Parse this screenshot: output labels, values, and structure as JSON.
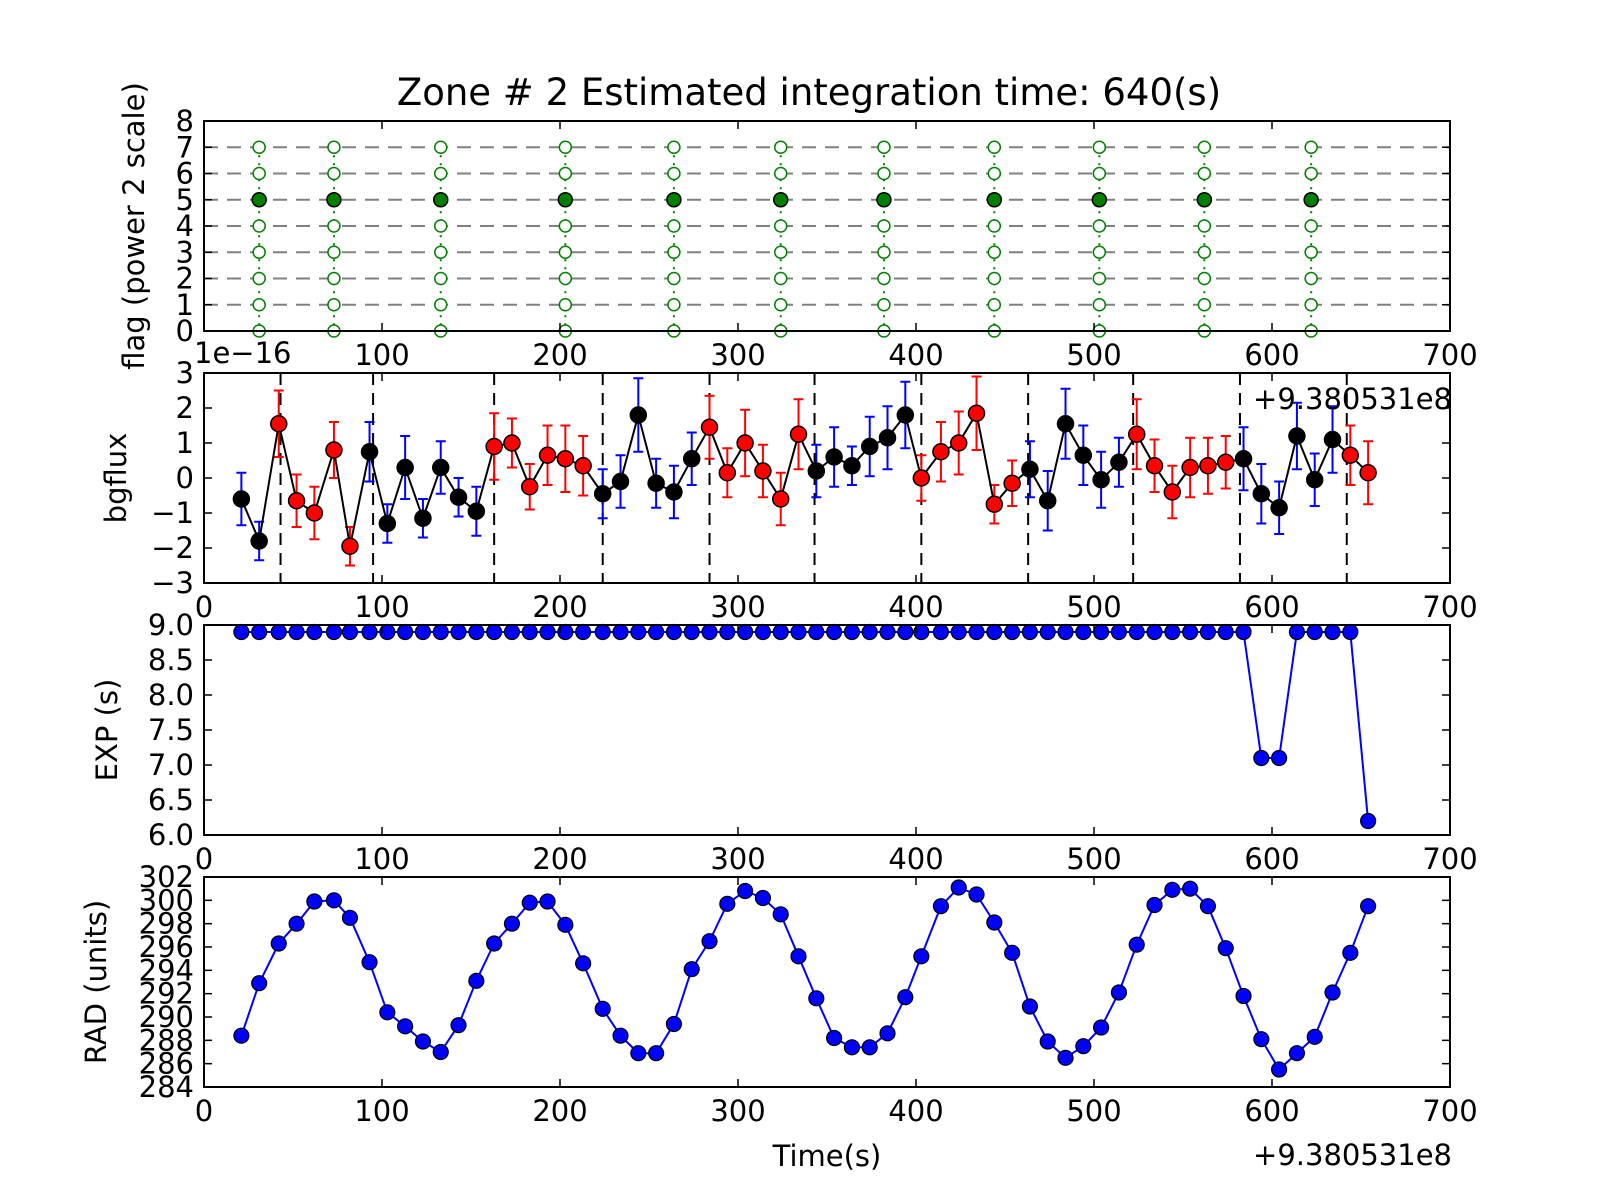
{
  "chart_data": [
    {
      "type": "scatter",
      "title": "Zone # 2 Estimated integration time: 640(s)",
      "ylabel": "flag (power 2 scale)",
      "xlim": [
        0,
        700
      ],
      "ylim": [
        0,
        8
      ],
      "xticks": [
        "100",
        "200",
        "300",
        "400",
        "500",
        "600",
        "700"
      ],
      "yticks": [
        "0",
        "1",
        "2",
        "3",
        "4",
        "5",
        "6",
        "7",
        "8"
      ],
      "grid_levels": [
        1,
        2,
        3,
        4,
        5,
        6,
        7
      ],
      "x": [
        31,
        73,
        133,
        203,
        264,
        324,
        382,
        444,
        503,
        562,
        622
      ],
      "set_flag": 5,
      "unset_flags": [
        0,
        1,
        2,
        3,
        4,
        6,
        7
      ],
      "colors": {
        "set": "#008000",
        "unset": "#008000",
        "grid": "#808080"
      }
    },
    {
      "type": "scatter",
      "ylabel": "bgflux",
      "scale_label": "1e−16",
      "offset_label": "+9.380531e8",
      "xlim": [
        0,
        700
      ],
      "ylim": [
        -3,
        3
      ],
      "xticks": [
        "0",
        "100",
        "200",
        "300",
        "400",
        "500",
        "600",
        "700"
      ],
      "yticks": [
        "−3",
        "−2",
        "−1",
        "0",
        "1",
        "2",
        "3"
      ],
      "zone_boundaries": [
        43,
        95,
        163,
        224,
        284,
        343,
        403,
        463,
        522,
        582,
        642
      ],
      "x": [
        21,
        31,
        42,
        52,
        62,
        73,
        82,
        93,
        103,
        113,
        123,
        133,
        143,
        153,
        163,
        173,
        183,
        193,
        203,
        213,
        224,
        234,
        244,
        254,
        264,
        274,
        284,
        294,
        304,
        314,
        324,
        334,
        344,
        354,
        364,
        374,
        384,
        394,
        403,
        414,
        424,
        434,
        444,
        454,
        464,
        474,
        484,
        494,
        504,
        514,
        524,
        534,
        544,
        554,
        564,
        574,
        584,
        594,
        604,
        614,
        624,
        634,
        644,
        654
      ],
      "y": [
        -0.6,
        -1.8,
        1.55,
        -0.65,
        -1.0,
        0.8,
        -1.95,
        0.75,
        -1.3,
        0.3,
        -1.15,
        0.3,
        -0.55,
        -0.95,
        0.9,
        1.0,
        -0.25,
        0.65,
        0.55,
        0.35,
        -0.45,
        -0.1,
        1.8,
        -0.15,
        -0.4,
        0.55,
        1.45,
        0.15,
        1.0,
        0.2,
        -0.6,
        1.25,
        0.2,
        0.6,
        0.35,
        0.9,
        1.15,
        1.8,
        0.0,
        0.75,
        1.0,
        1.85,
        -0.75,
        -0.15,
        0.25,
        -0.65,
        1.55,
        0.65,
        -0.05,
        0.45,
        1.25,
        0.35,
        -0.4,
        0.3,
        0.35,
        0.45,
        0.55,
        -0.45,
        -0.85,
        1.2,
        -0.05,
        1.1,
        0.65,
        0.15
      ],
      "yerr": [
        0.75,
        0.55,
        0.95,
        0.75,
        0.75,
        0.8,
        0.55,
        0.85,
        0.55,
        0.9,
        0.55,
        0.75,
        0.55,
        0.7,
        0.95,
        0.7,
        0.65,
        0.85,
        0.95,
        0.85,
        0.7,
        0.75,
        1.05,
        0.7,
        0.75,
        0.75,
        0.9,
        0.7,
        0.95,
        0.75,
        0.75,
        1.0,
        0.75,
        0.85,
        0.55,
        0.85,
        0.9,
        0.95,
        0.65,
        0.85,
        0.9,
        1.05,
        0.55,
        0.65,
        0.8,
        0.85,
        1.0,
        0.85,
        0.8,
        0.7,
        1.0,
        0.75,
        0.75,
        0.85,
        0.8,
        0.75,
        0.9,
        0.85,
        0.75,
        0.95,
        0.75,
        0.95,
        0.85,
        0.9
      ],
      "marker_colors": [
        "k",
        "k",
        "r",
        "r",
        "r",
        "r",
        "r",
        "k",
        "k",
        "k",
        "k",
        "k",
        "k",
        "k",
        "r",
        "r",
        "r",
        "r",
        "r",
        "r",
        "k",
        "k",
        "k",
        "k",
        "k",
        "k",
        "r",
        "r",
        "r",
        "r",
        "r",
        "r",
        "k",
        "k",
        "k",
        "k",
        "k",
        "k",
        "r",
        "r",
        "r",
        "r",
        "r",
        "r",
        "k",
        "k",
        "k",
        "k",
        "k",
        "k",
        "r",
        "r",
        "r",
        "r",
        "r",
        "r",
        "k",
        "k",
        "k",
        "k",
        "k",
        "k",
        "r",
        "r"
      ],
      "colors": {
        "k": "#000000",
        "r": "#ff0000",
        "errbar_k": "#0000ff",
        "errbar_r": "#ff0000",
        "line": "#000000"
      }
    },
    {
      "type": "line",
      "ylabel": "EXP (s)",
      "xlim": [
        0,
        700
      ],
      "ylim": [
        6.0,
        9.0
      ],
      "xticks": [
        "0",
        "100",
        "200",
        "300",
        "400",
        "500",
        "600",
        "700"
      ],
      "yticks": [
        "6.0",
        "6.5",
        "7.0",
        "7.5",
        "8.0",
        "8.5",
        "9.0"
      ],
      "x": [
        21,
        31,
        42,
        52,
        62,
        73,
        82,
        93,
        103,
        113,
        123,
        133,
        143,
        153,
        163,
        173,
        183,
        193,
        203,
        213,
        224,
        234,
        244,
        254,
        264,
        274,
        284,
        294,
        304,
        314,
        324,
        334,
        344,
        354,
        364,
        374,
        384,
        394,
        403,
        414,
        424,
        434,
        444,
        454,
        464,
        474,
        484,
        494,
        504,
        514,
        524,
        534,
        544,
        554,
        564,
        574,
        584,
        594,
        604,
        614,
        624,
        634,
        644,
        654
      ],
      "y": [
        8.9,
        8.9,
        8.9,
        8.9,
        8.9,
        8.9,
        8.9,
        8.9,
        8.9,
        8.9,
        8.9,
        8.9,
        8.9,
        8.9,
        8.9,
        8.9,
        8.9,
        8.9,
        8.9,
        8.9,
        8.9,
        8.9,
        8.9,
        8.9,
        8.9,
        8.9,
        8.9,
        8.9,
        8.9,
        8.9,
        8.9,
        8.9,
        8.9,
        8.9,
        8.9,
        8.9,
        8.9,
        8.9,
        8.9,
        8.9,
        8.9,
        8.9,
        8.9,
        8.9,
        8.9,
        8.9,
        8.9,
        8.9,
        8.9,
        8.9,
        8.9,
        8.9,
        8.9,
        8.9,
        8.9,
        8.9,
        8.9,
        7.1,
        7.1,
        8.9,
        8.9,
        8.9,
        8.9,
        6.2
      ],
      "colors": {
        "line": "#0000ff",
        "marker": "#0000ff"
      }
    },
    {
      "type": "line",
      "ylabel": "RAD (units)",
      "xlabel": "Time(s)",
      "offset_label": "+9.380531e8",
      "xlim": [
        0,
        700
      ],
      "ylim": [
        284,
        302
      ],
      "xticks": [
        "0",
        "100",
        "200",
        "300",
        "400",
        "500",
        "600",
        "700"
      ],
      "yticks": [
        "284",
        "286",
        "288",
        "290",
        "292",
        "294",
        "296",
        "298",
        "300",
        "302"
      ],
      "x": [
        21,
        31,
        42,
        52,
        62,
        73,
        82,
        93,
        103,
        113,
        123,
        133,
        143,
        153,
        163,
        173,
        183,
        193,
        203,
        213,
        224,
        234,
        244,
        254,
        264,
        274,
        284,
        294,
        304,
        314,
        324,
        334,
        344,
        354,
        364,
        374,
        384,
        394,
        403,
        414,
        424,
        434,
        444,
        454,
        464,
        474,
        484,
        494,
        504,
        514,
        524,
        534,
        544,
        554,
        564,
        574,
        584,
        594,
        604,
        614,
        624,
        634,
        644,
        654
      ],
      "y": [
        288.4,
        292.9,
        296.3,
        298.0,
        299.9,
        300.0,
        298.5,
        294.7,
        290.4,
        289.2,
        287.9,
        287.0,
        289.3,
        293.1,
        296.3,
        298.0,
        299.8,
        299.9,
        297.9,
        294.6,
        290.7,
        288.4,
        286.9,
        286.9,
        289.4,
        294.1,
        296.5,
        299.7,
        300.8,
        300.2,
        298.8,
        295.2,
        291.6,
        288.2,
        287.4,
        287.4,
        288.6,
        291.7,
        295.2,
        299.5,
        301.1,
        300.5,
        298.1,
        295.5,
        290.9,
        287.9,
        286.5,
        287.5,
        289.1,
        292.1,
        296.2,
        299.6,
        300.9,
        301.0,
        299.5,
        295.9,
        291.8,
        288.1,
        285.5,
        286.9,
        288.3,
        292.1,
        295.5,
        299.5
      ],
      "colors": {
        "line": "#0000ff",
        "marker": "#0000ff"
      }
    }
  ]
}
